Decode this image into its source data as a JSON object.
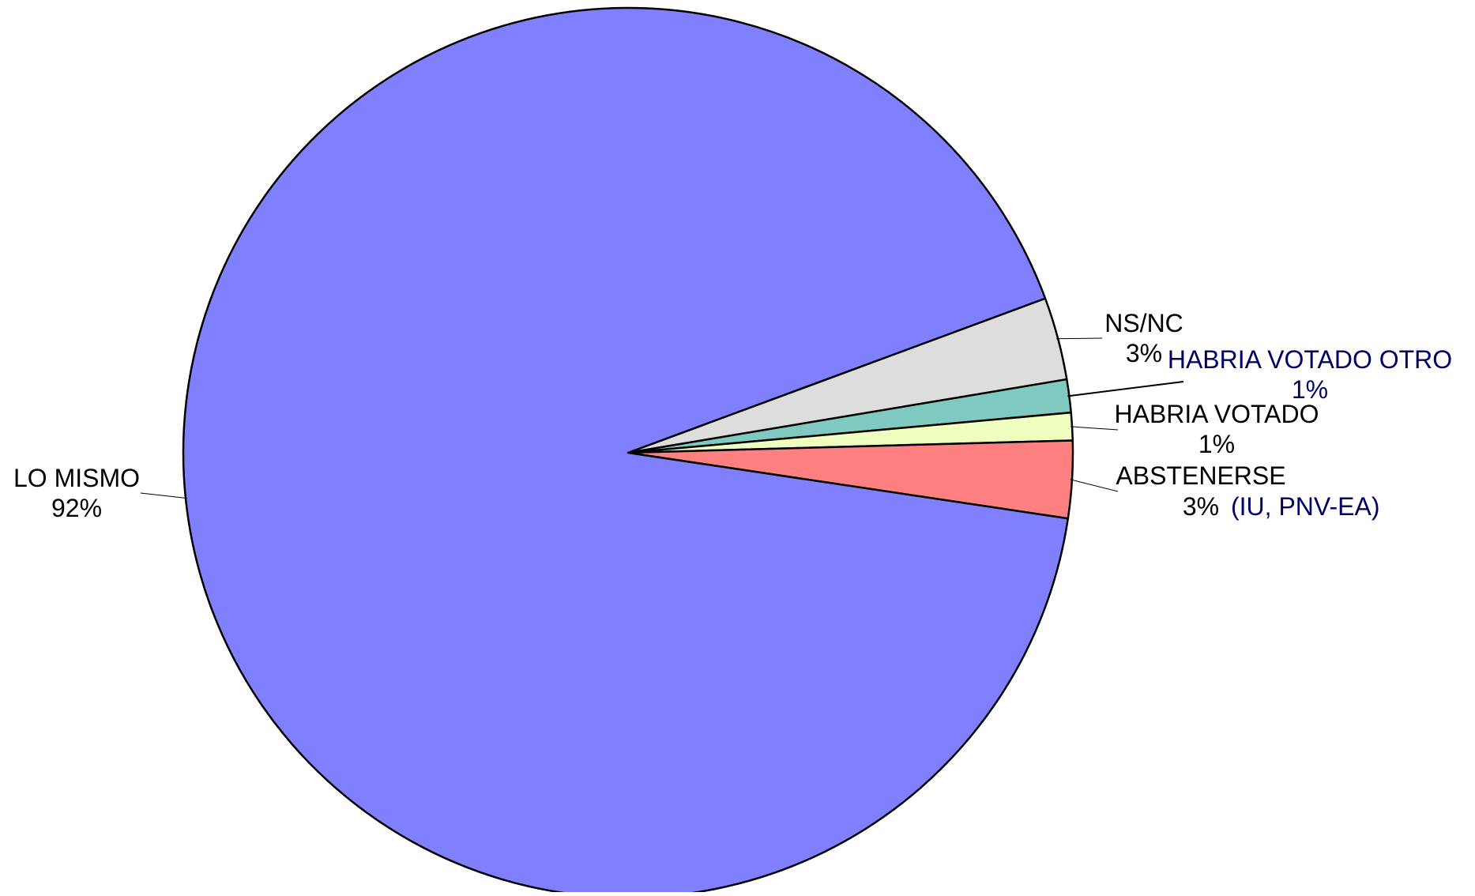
{
  "chart_data": {
    "type": "pie",
    "title": "",
    "slices": [
      {
        "label": "NS/NC",
        "value_label": "3%",
        "value": 3.0,
        "color": "#DDDDDD"
      },
      {
        "label": "HABRIA VOTADO OTRO",
        "value_label": "1%",
        "value": 1.2,
        "color": "#7FC9C1"
      },
      {
        "label": "HABRIA VOTADO",
        "value_label": "1%",
        "value": 1.0,
        "color": "#EEFFC0"
      },
      {
        "label": "ABSTENERSE",
        "value_label": "3%",
        "value": 2.8,
        "color": "#FF8080"
      },
      {
        "label": "LO MISMO",
        "value_label": "92%",
        "value": 92.0,
        "color": "#8080FF"
      }
    ],
    "annotation": "(IU, PNV-EA)"
  },
  "colors": {
    "outline": "#000000",
    "label_dark": "#000000",
    "label_navy": "#000066"
  }
}
